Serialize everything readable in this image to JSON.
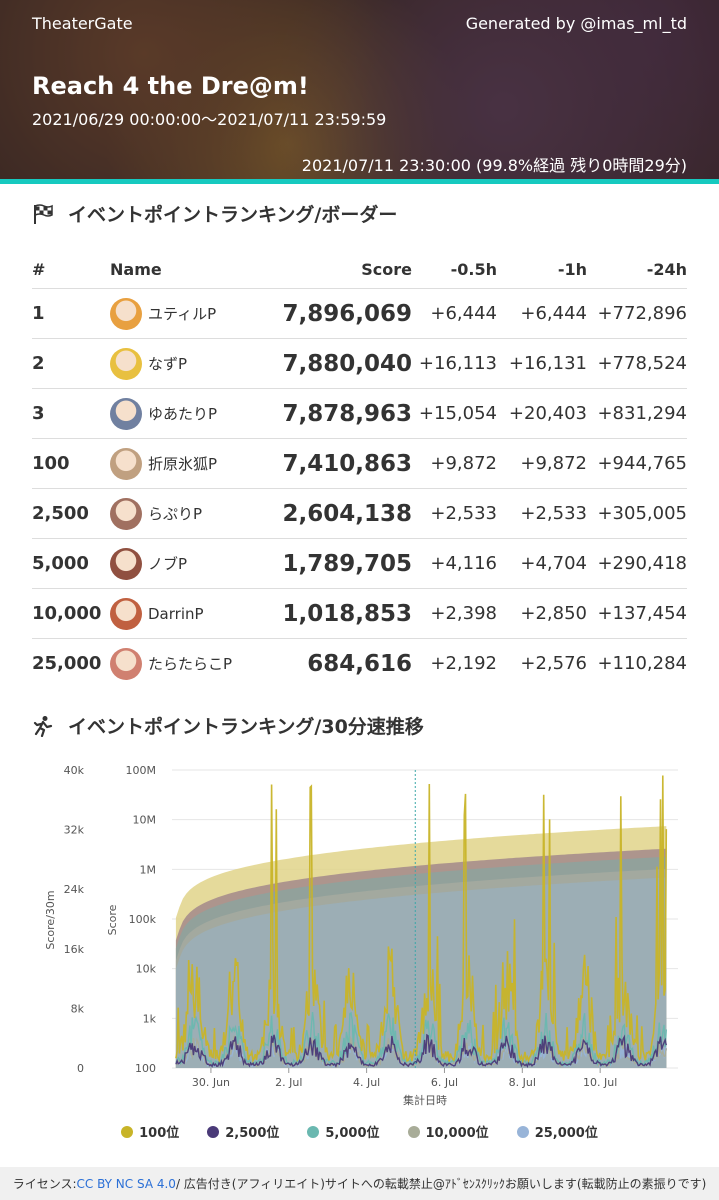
{
  "header": {
    "site": "TheaterGate",
    "credit": "Generated by @imas_ml_td",
    "event_title": "Reach 4 the Dre@m!",
    "period": "2021/06/29 00:00:00～2021/07/11 23:59:59",
    "as_of": "2021/07/11 23:30:00 (99.8%経過 残り0時間29分)"
  },
  "ranking": {
    "section_title": "イベントポイントランキング/ボーダー",
    "icon": "checkered-flag-icon",
    "columns": {
      "rank": "#",
      "name": "Name",
      "score": "Score",
      "d05": "-0.5h",
      "d1": "-1h",
      "d24": "-24h"
    },
    "rows": [
      {
        "rank": "1",
        "name": "ユティルP",
        "score": "7,896,069",
        "d05": "+6,444",
        "d1": "+6,444",
        "d24": "+772,896",
        "avatar_color": "#e8a040"
      },
      {
        "rank": "2",
        "name": "なずP",
        "score": "7,880,040",
        "d05": "+16,113",
        "d1": "+16,131",
        "d24": "+778,524",
        "avatar_color": "#e8c040"
      },
      {
        "rank": "3",
        "name": "ゆあたりP",
        "score": "7,878,963",
        "d05": "+15,054",
        "d1": "+20,403",
        "d24": "+831,294",
        "avatar_color": "#7080a0"
      },
      {
        "rank": "100",
        "name": "折原氷狐P",
        "score": "7,410,863",
        "d05": "+9,872",
        "d1": "+9,872",
        "d24": "+944,765",
        "avatar_color": "#c0a080"
      },
      {
        "rank": "2,500",
        "name": "らぷりP",
        "score": "2,604,138",
        "d05": "+2,533",
        "d1": "+2,533",
        "d24": "+305,005",
        "avatar_color": "#a07060"
      },
      {
        "rank": "5,000",
        "name": "ノブP",
        "score": "1,789,705",
        "d05": "+4,116",
        "d1": "+4,704",
        "d24": "+290,418",
        "avatar_color": "#905040"
      },
      {
        "rank": "10,000",
        "name": "DarrinP",
        "score": "1,018,853",
        "d05": "+2,398",
        "d1": "+2,850",
        "d24": "+137,454",
        "avatar_color": "#c06040"
      },
      {
        "rank": "25,000",
        "name": "たらたらこP",
        "score": "684,616",
        "d05": "+2,192",
        "d1": "+2,576",
        "d24": "+110,284",
        "avatar_color": "#d08070"
      }
    ]
  },
  "speed_section": {
    "section_title": "イベントポイントランキング/30分速推移",
    "icon": "running-person-icon"
  },
  "chart_data": {
    "type": "area",
    "xlabel": "集計日時",
    "y_left_label": "Score/30m",
    "y_right_label": "Score",
    "y_left_ticks": [
      "0",
      "8k",
      "16k",
      "24k",
      "32k",
      "40k"
    ],
    "y_right_ticks": [
      "100",
      "1k",
      "10k",
      "100k",
      "1M",
      "10M",
      "100M"
    ],
    "y_left_range": [
      0,
      40000
    ],
    "y_right_range_log": [
      100,
      100000000
    ],
    "x_ticks": [
      "30. Jun",
      "2. Jul",
      "4. Jul",
      "6. Jul",
      "8. Jul",
      "10. Jul"
    ],
    "x_range_days": [
      "2021-06-29",
      "2021-07-11"
    ],
    "grid": true,
    "series": [
      {
        "name": "100位",
        "color": "#c8b428",
        "score_end": 7410863,
        "speed_typical": 9872
      },
      {
        "name": "2,500位",
        "color": "#4a3a78",
        "score_end": 2604138,
        "speed_typical": 2533
      },
      {
        "name": "5,000位",
        "color": "#6ab8b0",
        "score_end": 1789705,
        "speed_typical": 4116
      },
      {
        "name": "10,000位",
        "color": "#a8ac98",
        "score_end": 1018853,
        "speed_typical": 2398
      },
      {
        "name": "25,000位",
        "color": "#98b4d8",
        "score_end": 684616,
        "speed_typical": 2192
      }
    ]
  },
  "footer": {
    "prefix": "ライセンス: ",
    "license_link": "CC BY NC SA 4.0",
    "suffix": " / 広告付き(アフィリエイト)サイトへの転載禁止@ｱﾄﾞｾﾝｽｸﾘｯｸお願いします(転載防止の素振りです)"
  }
}
